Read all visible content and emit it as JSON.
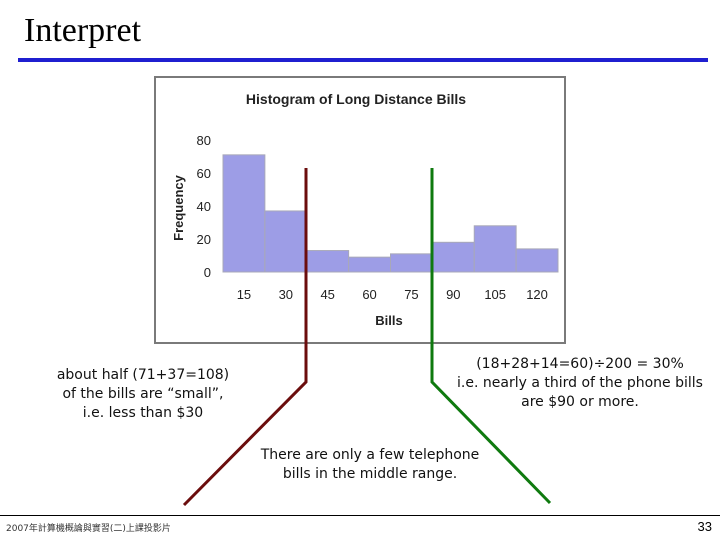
{
  "slide": {
    "title": "Interpret",
    "page_number": "33",
    "footer": "2007年計算機概論與實習(二)上課投影片"
  },
  "notes": {
    "left": [
      "about half (71+37=108)",
      "of the bills are “small”,",
      "i.e. less than $30"
    ],
    "right": [
      "(18+28+14=60)÷200 = 30%",
      "i.e. nearly a third of the phone bills",
      "are $90 or more."
    ],
    "middle": [
      "There are only a few telephone",
      "bills in the middle range."
    ]
  },
  "colors": {
    "title_rule": "#1f1fd0",
    "bar_fill": "#9d9de6",
    "left_line": "#6b0d0d",
    "right_line": "#0f7a0f"
  },
  "chart_data": {
    "type": "bar",
    "title": "Histogram of Long Distance Bills",
    "xlabel": "Bills",
    "ylabel": "Frequency",
    "x_ticks": [
      15,
      30,
      45,
      60,
      75,
      90,
      105,
      120
    ],
    "y_ticks": [
      0,
      20,
      40,
      60,
      80
    ],
    "ylim": [
      0,
      80
    ],
    "bin_edges": [
      7.5,
      22.5,
      37.5,
      52.5,
      67.5,
      82.5,
      97.5,
      112.5,
      127.5
    ],
    "values": [
      71,
      37,
      13,
      9,
      11,
      18,
      28,
      14
    ],
    "grid": false,
    "legend": "none"
  }
}
